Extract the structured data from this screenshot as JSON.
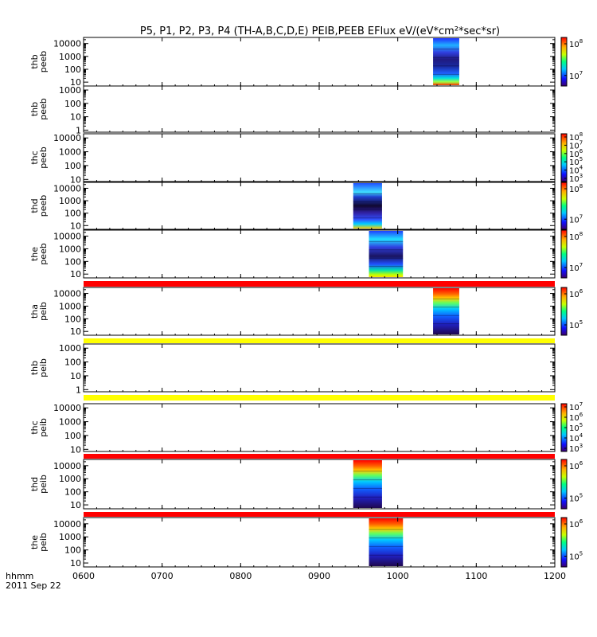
{
  "title": "P5, P1, P2, P3, P4 (TH-A,B,C,D,E) PEIB,PEEB EFlux eV/(eV*cm²*sec*sr)",
  "x_axis": {
    "labels": [
      "0600",
      "0700",
      "0800",
      "0900",
      "1000",
      "1100",
      "1200"
    ],
    "unit_label": "hhmm",
    "date_label": "2011 Sep 22"
  },
  "colors": {
    "frame": "#000000",
    "red_band": "#ff0000",
    "yellow_band": "#ffff00",
    "grid_mark": "#000000"
  },
  "chart_data": [
    {
      "type": "heatmap",
      "ylabel": [
        "thb",
        "peeb"
      ],
      "yticks": [
        "10",
        "100",
        "1000",
        "10000"
      ],
      "ylim": [
        5,
        30000
      ],
      "ylog": true,
      "x_start": "10:27",
      "x_end": "10:47",
      "colorbar": {
        "ticks": [
          {
            "label": "10",
            "exp": "8"
          },
          {
            "label": "10",
            "exp": "7"
          }
        ]
      }
    },
    {
      "type": "heatmap",
      "ylabel": [
        "thb",
        "peeb"
      ],
      "yticks": [
        "1",
        "10",
        "100",
        "1000"
      ],
      "ylim": [
        0.7,
        2000
      ],
      "ylog": true,
      "x_start": null,
      "x_end": null,
      "colorbar": null
    },
    {
      "type": "heatmap",
      "ylabel": [
        "thc",
        "peeb"
      ],
      "yticks": [
        "10",
        "100",
        "1000",
        "10000"
      ],
      "ylim": [
        7,
        20000
      ],
      "ylog": true,
      "x_start": null,
      "x_end": null,
      "colorbar": {
        "ticks": [
          {
            "label": "10",
            "exp": "8"
          },
          {
            "label": "10",
            "exp": "7"
          },
          {
            "label": "10",
            "exp": "6"
          },
          {
            "label": "10",
            "exp": "5"
          },
          {
            "label": "10",
            "exp": "4"
          },
          {
            "label": "10",
            "exp": "3"
          }
        ]
      }
    },
    {
      "type": "heatmap",
      "ylabel": [
        "thd",
        "peeb"
      ],
      "yticks": [
        "10",
        "100",
        "1000",
        "10000"
      ],
      "ylim": [
        5,
        30000
      ],
      "ylog": true,
      "x_start": "09:26",
      "x_end": "09:48",
      "colorbar": {
        "ticks": [
          {
            "label": "10",
            "exp": "8"
          },
          {
            "label": "10",
            "exp": "7"
          }
        ]
      }
    },
    {
      "type": "heatmap",
      "ylabel": [
        "the",
        "peeb"
      ],
      "yticks": [
        "10",
        "100",
        "1000",
        "10000"
      ],
      "ylim": [
        5,
        30000
      ],
      "ylog": true,
      "x_start": "09:38",
      "x_end": "10:04",
      "colorbar": {
        "ticks": [
          {
            "label": "10",
            "exp": "8"
          },
          {
            "label": "10",
            "exp": "7"
          }
        ]
      }
    },
    {
      "type": "heatmap",
      "ylabel": [
        "tha",
        "peib"
      ],
      "yticks": [
        "10",
        "100",
        "1000",
        "10000"
      ],
      "ylim": [
        5,
        30000
      ],
      "ylog": true,
      "x_start": "10:27",
      "x_end": "10:47",
      "band": "red",
      "colorbar": {
        "ticks": [
          {
            "label": "10",
            "exp": "6"
          },
          {
            "label": "10",
            "exp": "5"
          }
        ]
      }
    },
    {
      "type": "heatmap",
      "ylabel": [
        "thb",
        "peib"
      ],
      "yticks": [
        "1",
        "10",
        "100",
        "1000"
      ],
      "ylim": [
        0.7,
        2000
      ],
      "ylog": true,
      "x_start": null,
      "x_end": null,
      "band": "yellow",
      "colorbar": null
    },
    {
      "type": "heatmap",
      "ylabel": [
        "thc",
        "peib"
      ],
      "yticks": [
        "10",
        "100",
        "1000",
        "10000"
      ],
      "ylim": [
        7,
        20000
      ],
      "ylog": true,
      "x_start": null,
      "x_end": null,
      "band": "yellow",
      "colorbar": {
        "ticks": [
          {
            "label": "10",
            "exp": "7"
          },
          {
            "label": "10",
            "exp": "6"
          },
          {
            "label": "10",
            "exp": "5"
          },
          {
            "label": "10",
            "exp": "4"
          },
          {
            "label": "10",
            "exp": "3"
          }
        ]
      }
    },
    {
      "type": "heatmap",
      "ylabel": [
        "thd",
        "peib"
      ],
      "yticks": [
        "10",
        "100",
        "1000",
        "10000"
      ],
      "ylim": [
        5,
        30000
      ],
      "ylog": true,
      "x_start": "09:26",
      "x_end": "09:48",
      "band": "red",
      "colorbar": {
        "ticks": [
          {
            "label": "10",
            "exp": "6"
          },
          {
            "label": "10",
            "exp": "5"
          }
        ]
      }
    },
    {
      "type": "heatmap",
      "ylabel": [
        "the",
        "peib"
      ],
      "yticks": [
        "10",
        "100",
        "1000",
        "10000"
      ],
      "ylim": [
        5,
        30000
      ],
      "ylog": true,
      "x_start": "09:38",
      "x_end": "10:04",
      "band": "red",
      "colorbar": {
        "ticks": [
          {
            "label": "10",
            "exp": "6"
          },
          {
            "label": "10",
            "exp": "5"
          }
        ]
      }
    }
  ]
}
